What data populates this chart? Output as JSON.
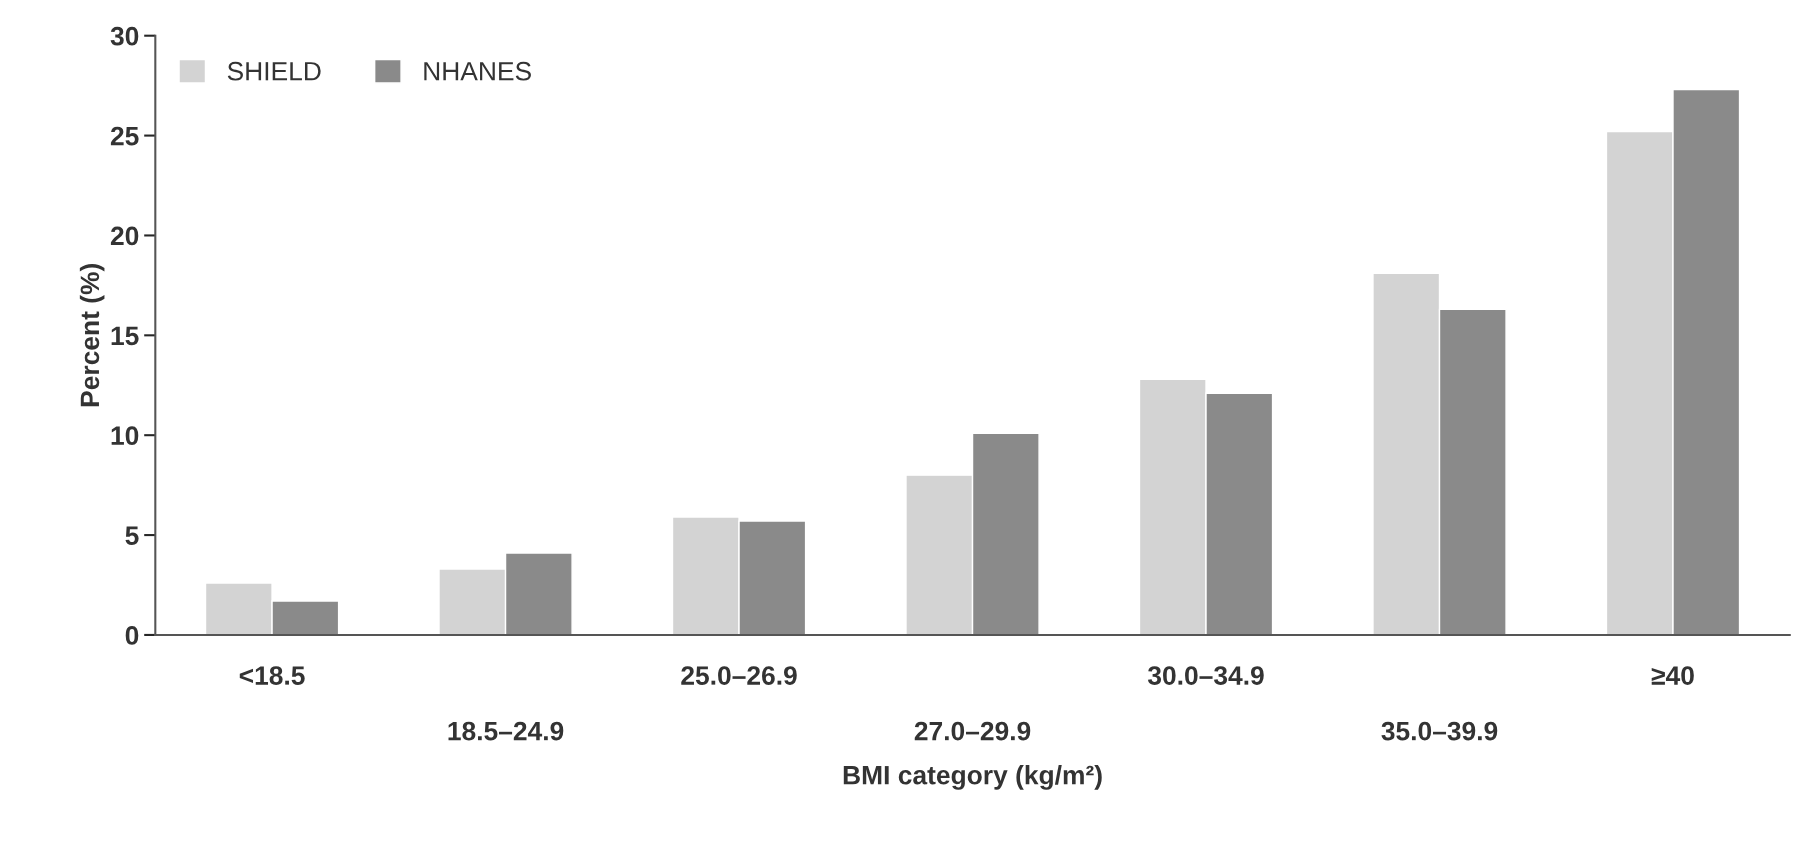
{
  "chart_data": {
    "type": "bar",
    "categories": [
      "<18.5",
      "18.5–24.9",
      "25.0–26.9",
      "27.0–29.9",
      "30.0–34.9",
      "35.0–39.9",
      "≥40"
    ],
    "series": [
      {
        "name": "SHIELD",
        "color": "#d3d3d3",
        "values": [
          2.6,
          3.3,
          5.9,
          8.0,
          12.8,
          18.1,
          25.2
        ]
      },
      {
        "name": "NHANES",
        "color": "#8a8a8a",
        "values": [
          1.7,
          4.1,
          5.7,
          10.1,
          12.1,
          16.3,
          27.3
        ]
      }
    ],
    "xlabel": "BMI category (kg/m²)",
    "ylabel": "Percent (%)",
    "ylim": [
      0,
      30
    ],
    "yticks": [
      0,
      5,
      10,
      15,
      20,
      25,
      30
    ],
    "legend": "top left",
    "grid": false
  }
}
